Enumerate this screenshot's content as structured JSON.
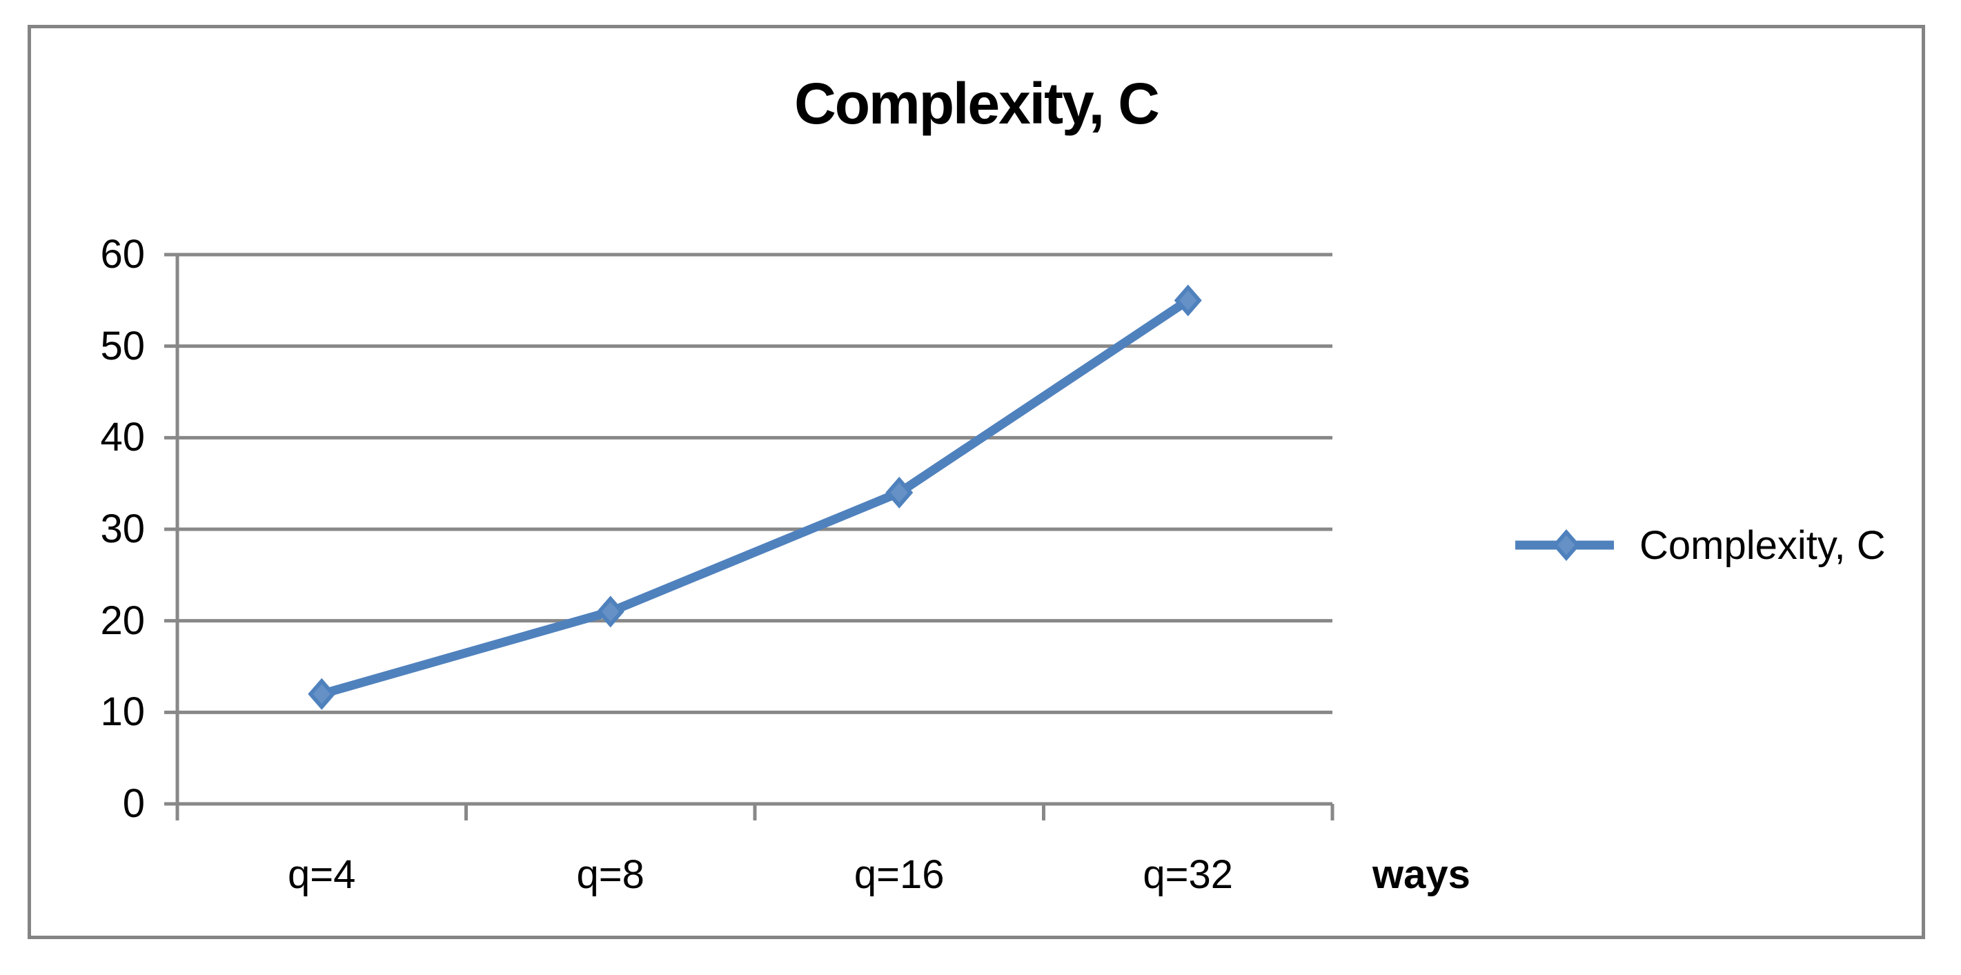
{
  "chart_data": {
    "type": "line",
    "title": "Complexity, C",
    "categories": [
      "q=4",
      "q=8",
      "q=16",
      "q=32"
    ],
    "series": [
      {
        "name": "Complexity, C",
        "values": [
          12,
          21,
          34,
          55
        ],
        "color": "#4F81BD",
        "marker": "diamond",
        "marker_inner_color": "#6591C6"
      }
    ],
    "xlabel": "ways",
    "ylabel": "",
    "ylim": [
      0,
      60
    ],
    "yticks": [
      0,
      10,
      20,
      30,
      40,
      50,
      60
    ],
    "grid": true,
    "legend_position": "right-middle",
    "gridline_color": "#888888",
    "axis_color": "#888888",
    "border_color": "#848484",
    "text_color": "#000000"
  }
}
